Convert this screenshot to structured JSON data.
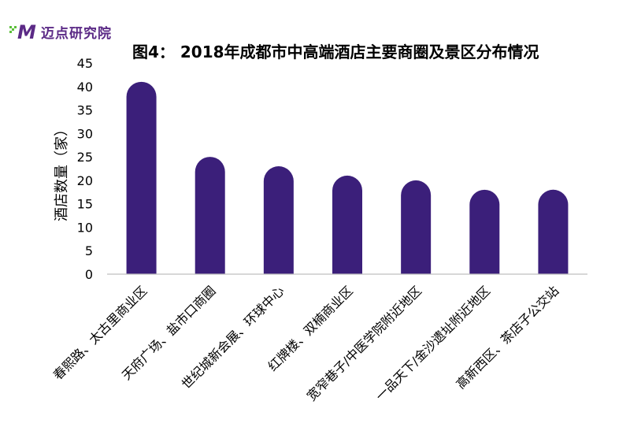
{
  "brand": {
    "name": "迈点研究院",
    "logo_letter": "M",
    "colors": {
      "purple": "#5b2a86",
      "green": "#5cbf3a"
    }
  },
  "chart_data": {
    "type": "bar",
    "title": "图4： 2018年成都市中高端酒店主要商圈及景区分布情况",
    "xlabel": "",
    "ylabel": "酒店数量（家）",
    "categories": [
      "春熙路、太古里商业区",
      "天府广场、盐市口商圈",
      "世纪城新会展、环球中心",
      "红牌楼、双楠商业区",
      "宽窄巷子/中医学院附近地区",
      "一品天下/金沙遗址附近地区",
      "高新西区、茶店子公交站"
    ],
    "values": [
      41,
      25,
      23,
      21,
      20,
      18,
      18
    ],
    "ylim": [
      0,
      45
    ],
    "yticks": [
      "0",
      "5",
      "10",
      "15",
      "20",
      "25",
      "30",
      "35",
      "40",
      "45"
    ],
    "grid": false,
    "bar_color": "#3b1f7a",
    "bar_shape": "rounded-top"
  }
}
